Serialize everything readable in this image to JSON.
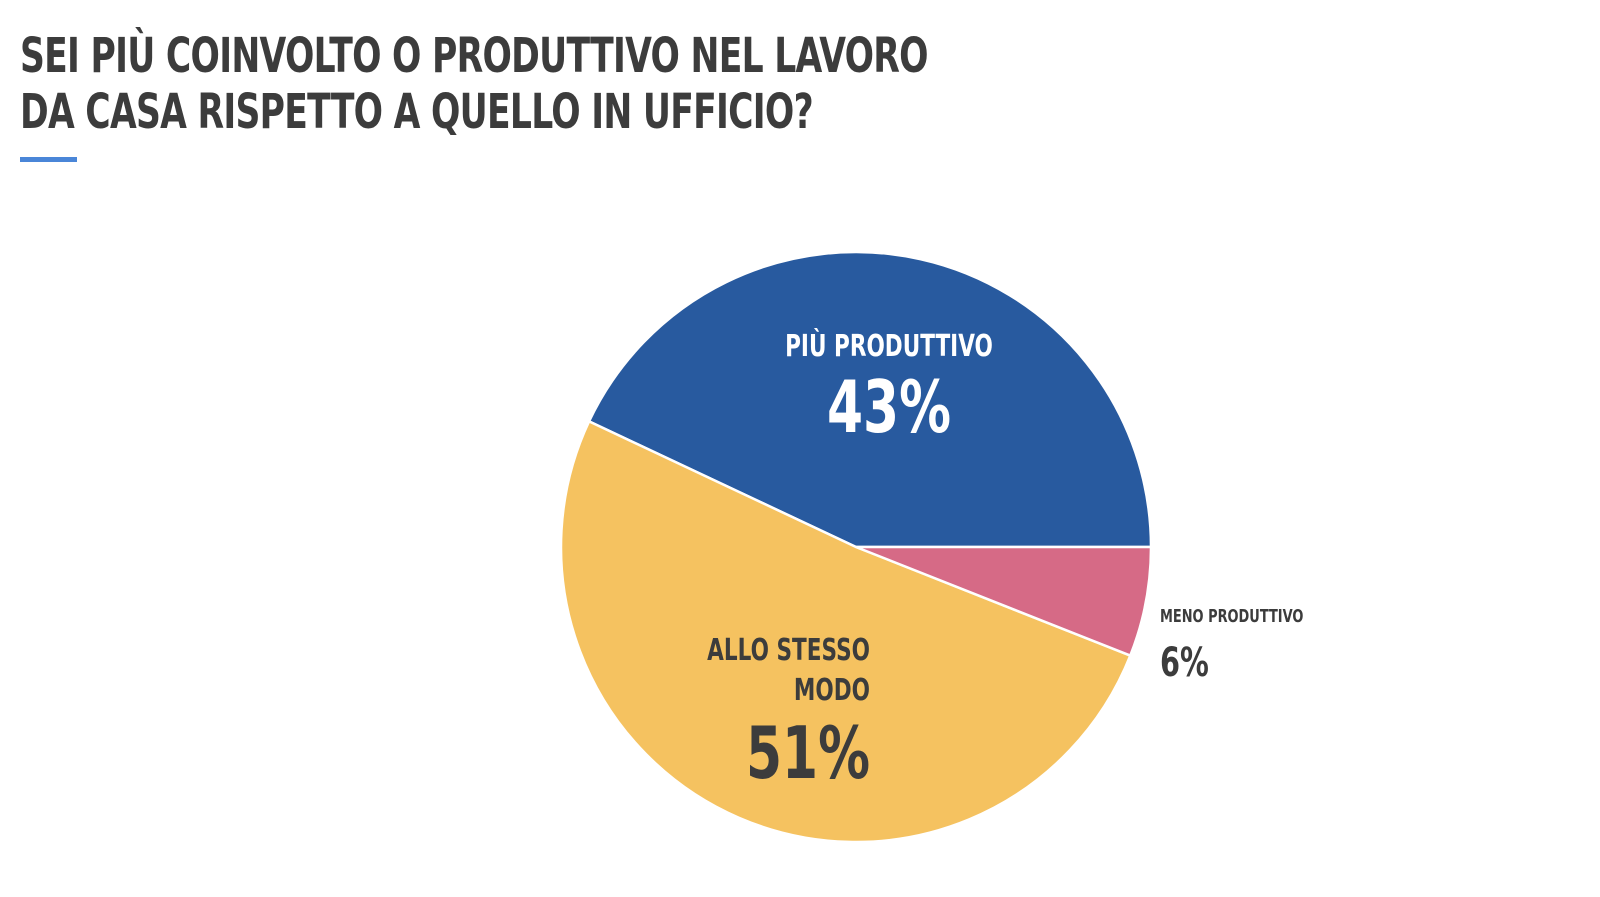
{
  "title": {
    "line1": "SEI PIÙ COINVOLTO O PRODUTTIVO NEL LAVORO",
    "line2": "DA CASA RISPETTO A QUELLO IN UFFICIO?"
  },
  "colors": {
    "accent": "#4a86d8",
    "text": "#3c3c3c"
  },
  "chart_data": {
    "type": "pie",
    "title": "SEI PIÙ COINVOLTO O PRODUTTIVO NEL LAVORO DA CASA RISPETTO A QUELLO IN UFFICIO?",
    "start_angle_deg": 0,
    "direction": "counterclockwise",
    "slices": [
      {
        "label": "PIÙ PRODUTTIVO",
        "label_lines": [
          "PIÙ PRODUTTIVO"
        ],
        "value": 43,
        "value_label": "43%",
        "color": "#285a9f",
        "label_color": "#ffffff",
        "label_position": "inside"
      },
      {
        "label": "ALLO STESSO MODO",
        "label_lines": [
          "ALLO STESSO",
          "MODO"
        ],
        "value": 51,
        "value_label": "51%",
        "color": "#f5c260",
        "label_color": "#3c3c3c",
        "label_position": "inside"
      },
      {
        "label": "MENO PRODUTTIVO",
        "label_lines": [
          "MENO PRODUTTIVO"
        ],
        "value": 6,
        "value_label": "6%",
        "color": "#d66a86",
        "label_color": "#3c3c3c",
        "label_position": "outside"
      }
    ]
  }
}
